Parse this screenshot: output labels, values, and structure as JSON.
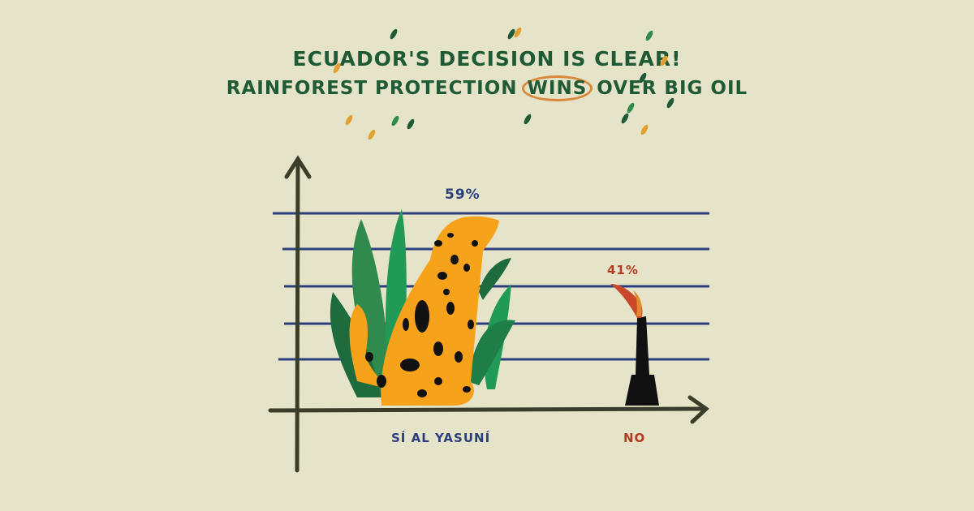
{
  "title": {
    "line1": "ECUADOR'S DECISION IS CLEAR!",
    "line2_before": "RAINFOREST PROTECTION ",
    "line2_highlight": "WINS",
    "line2_after": " OVER BIG OIL"
  },
  "colors": {
    "background": "#e5e4c8",
    "title": "#1f5a36",
    "highlight_circle": "#d9893a",
    "gridlines": "#2b3f7e",
    "axis": "#3a3d2a",
    "yes_label": "#2b3f7e",
    "no_label": "#b63a22",
    "jaguar": "#f7a21b"
  },
  "chart_data": {
    "type": "bar",
    "categories": [
      "SÍ AL YASUNÍ",
      "NO"
    ],
    "values": [
      59,
      41
    ],
    "data_labels": [
      "59%",
      "41%"
    ],
    "title": "",
    "xlabel": "",
    "ylabel": "",
    "ylim": [
      0,
      59
    ],
    "grid": true,
    "bar_illustrations": [
      "jaguar-with-plants",
      "oil-smokestack-with-flame"
    ]
  }
}
